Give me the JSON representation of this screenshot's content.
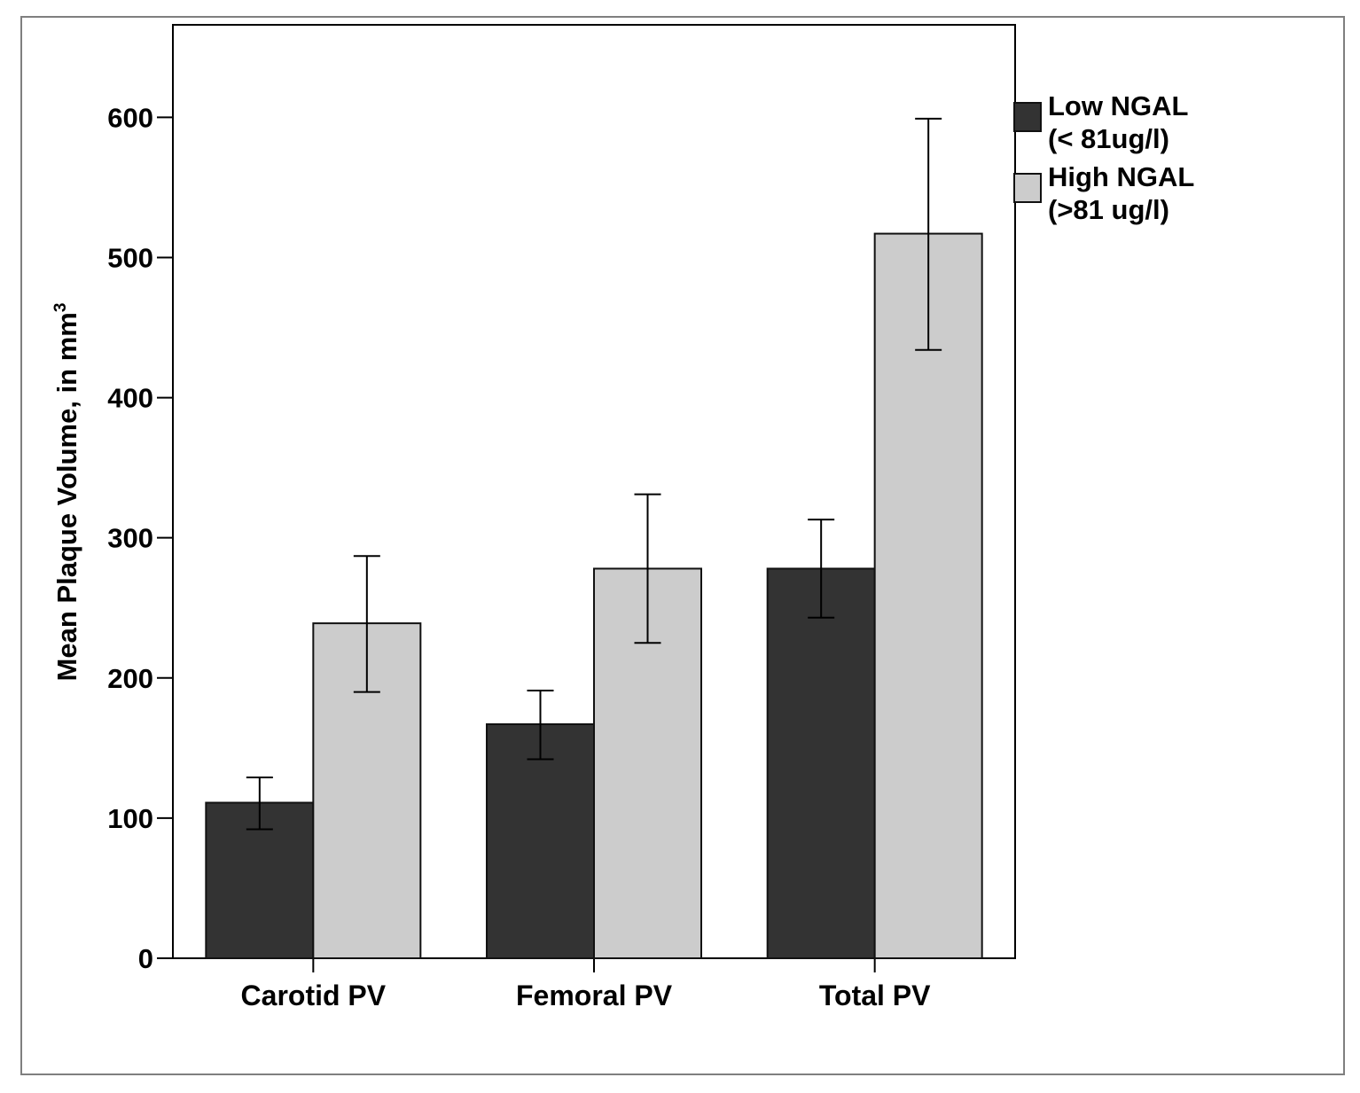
{
  "chart_data": {
    "type": "bar",
    "categories": [
      "Carotid PV",
      "Femoral PV",
      "Total PV"
    ],
    "series": [
      {
        "name": "Low NGAL (< 81ug/l)",
        "legend_lines": [
          "Low NGAL",
          "(< 81ug/l)"
        ],
        "color": "#333333",
        "values": [
          111,
          167,
          278
        ],
        "err_low": [
          92,
          142,
          243
        ],
        "err_high": [
          129,
          191,
          313
        ]
      },
      {
        "name": "High NGAL (>81 ug/l)",
        "legend_lines": [
          "High NGAL",
          "(>81 ug/l)"
        ],
        "color": "#cccccc",
        "values": [
          239,
          278,
          517
        ],
        "err_low": [
          190,
          225,
          434
        ],
        "err_high": [
          287,
          331,
          599
        ]
      }
    ],
    "title": "",
    "xlabel": "",
    "ylabel": "Mean Plaque Volume, in mm",
    "ylabel_superscript": "3",
    "ylim": [
      0,
      666
    ],
    "yticks": [
      0,
      100,
      200,
      300,
      400,
      500,
      600
    ],
    "legend_position": "right",
    "grid": false
  }
}
